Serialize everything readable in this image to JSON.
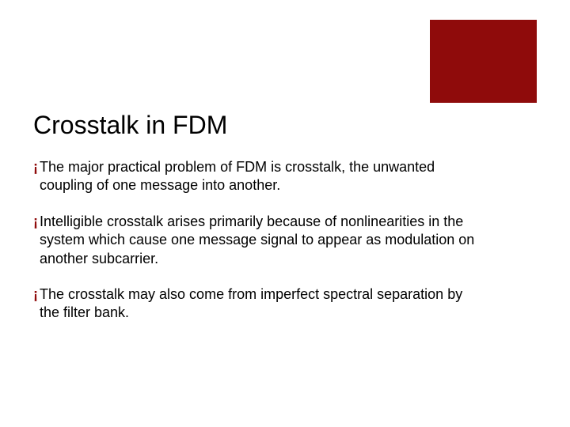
{
  "slide": {
    "title": "Crosstalk in FDM",
    "title_color": "#000000",
    "title_fontsize": 32,
    "corner_box_color": "#8f0b0b",
    "bullet_marker": "¡",
    "bullet_marker_color": "#8f0b0b",
    "body_fontsize": 18,
    "body_color": "#000000",
    "background_color": "#ffffff",
    "bullets": [
      "The major practical problem of FDM is crosstalk, the unwanted coupling of one message into another.",
      "Intelligible crosstalk arises primarily because of nonlinearities in the system which cause one message signal to appear as modulation on another subcarrier.",
      "The crosstalk may also come from imperfect spectral separation by the filter bank."
    ]
  }
}
